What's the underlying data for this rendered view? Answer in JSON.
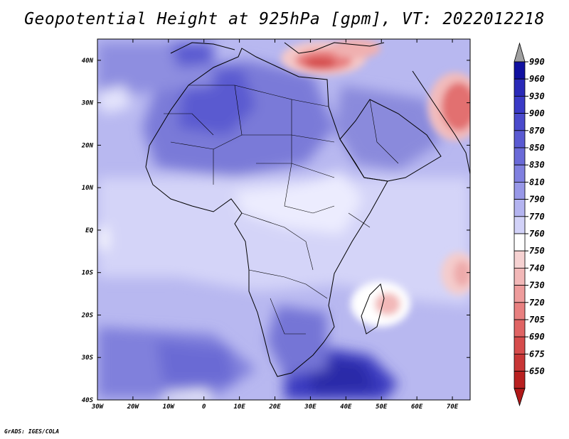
{
  "title": "Geopotential Height at 925hPa [gpm], VT: 2022012218",
  "footer": "GrADS: IGES/COLA",
  "axes": {
    "lon_labels": [
      "30W",
      "20W",
      "10W",
      "0",
      "10E",
      "20E",
      "30E",
      "40E",
      "50E",
      "60E",
      "70E"
    ],
    "lat_labels": [
      "40N",
      "30N",
      "20N",
      "10N",
      "EQ",
      "10S",
      "20S",
      "30S",
      "40S"
    ]
  },
  "map": {
    "lon_range": [
      -30,
      75
    ],
    "lat_range": [
      -40,
      45
    ],
    "variable": "Geopotential Height",
    "level": "925hPa",
    "units": "gpm",
    "valid_time": "2022012218"
  },
  "colorbar": {
    "levels": [
      "990",
      "960",
      "930",
      "900",
      "870",
      "850",
      "830",
      "810",
      "790",
      "770",
      "760",
      "750",
      "740",
      "730",
      "720",
      "705",
      "690",
      "675",
      "650"
    ],
    "colors": [
      "#1010a0",
      "#2a2ab8",
      "#3a3ac6",
      "#4a4acc",
      "#5a5ad2",
      "#6a6ad8",
      "#8080e0",
      "#9898e8",
      "#b4b4f0",
      "#d2d2f8",
      "#ffffff",
      "#f6d2d2",
      "#f2b8b8",
      "#ee9c9c",
      "#e88080",
      "#e06464",
      "#d64c4c",
      "#c83636",
      "#b82020"
    ],
    "top_arrow_color": "#a0a0a0",
    "bottom_arrow_color": "#b01818"
  }
}
